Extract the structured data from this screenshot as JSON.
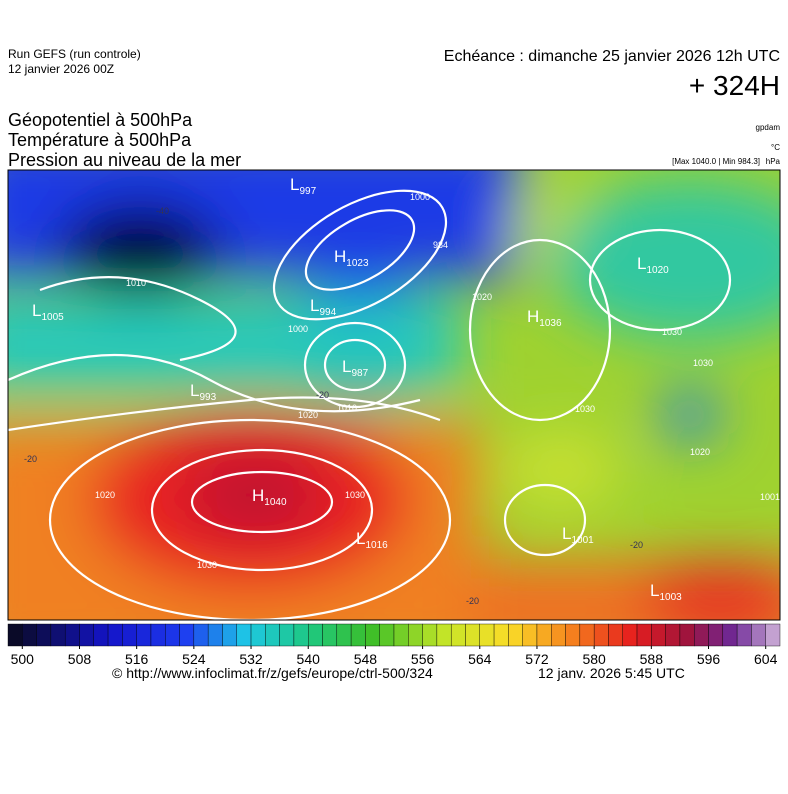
{
  "header": {
    "run": "Run GEFS (run controle)",
    "run_date": "12 janvier 2026 00Z",
    "echeance": "Echéance : dimanche 25 janvier 2026 12h UTC",
    "lead": "+ 324H",
    "titles": [
      "Géopotentiel à 500hPa",
      "Température à 500hPa",
      "Pression au niveau de la mer"
    ],
    "unit_geo": "gpdam",
    "unit_temp": "°C",
    "extremes": "[Max 1040.0 | Min 984.3]",
    "unit_pres": "hPa"
  },
  "map": {
    "centers": [
      {
        "letter": "L",
        "value": "997"
      },
      {
        "letter": "H",
        "value": "1023"
      },
      {
        "letter": "L",
        "value": "994"
      },
      {
        "letter": "L",
        "value": "987"
      },
      {
        "letter": "L",
        "value": "1005"
      },
      {
        "letter": "L",
        "value": "993"
      },
      {
        "letter": "H",
        "value": "1040"
      },
      {
        "letter": "L",
        "value": "1016"
      },
      {
        "letter": "L",
        "value": "1001"
      },
      {
        "letter": "L",
        "value": "1003"
      },
      {
        "letter": "H",
        "value": "1036"
      },
      {
        "letter": "L",
        "value": "1020"
      }
    ],
    "isobar_labels": [
      "1010",
      "1000",
      "984",
      "1000",
      "1020",
      "1010",
      "1020",
      "1030",
      "1030",
      "1020",
      "1030",
      "1030",
      "1030",
      "1020",
      "1001"
    ],
    "temp_labels": [
      "-40",
      "-20",
      "-20",
      "-20",
      "-20"
    ]
  },
  "colorbar": {
    "lim": [
      498,
      606
    ],
    "step": 2,
    "ticks": [
      500,
      508,
      516,
      524,
      532,
      540,
      548,
      556,
      564,
      572,
      580,
      588,
      596,
      604
    ]
  },
  "footer": {
    "url": "© http://www.infoclimat.fr/z/gefs/europe/ctrl-500/324",
    "time": "12 janv. 2026  5:45 UTC"
  }
}
